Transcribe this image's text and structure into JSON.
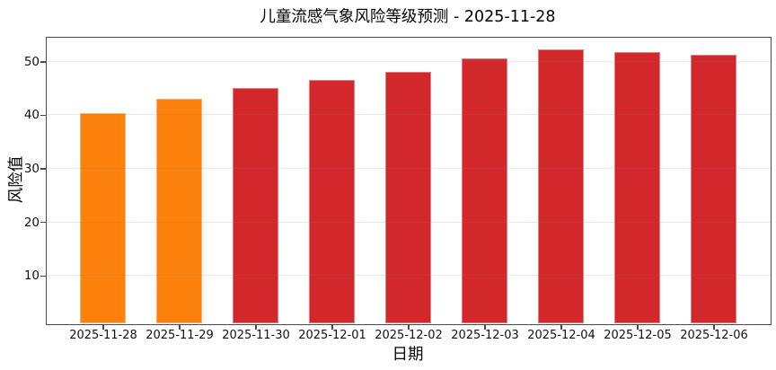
{
  "chart_data": {
    "type": "bar",
    "title": "儿童流感气象风险等级预测 - 2025-11-28",
    "xlabel": "日期",
    "ylabel": "风险值",
    "categories": [
      "2025-11-28",
      "2025-11-29",
      "2025-11-30",
      "2025-12-01",
      "2025-12-02",
      "2025-12-03",
      "2025-12-04",
      "2025-12-05",
      "2025-12-06"
    ],
    "values": [
      40.4,
      43.0,
      45.1,
      46.6,
      48.0,
      50.5,
      52.2,
      51.8,
      51.3
    ],
    "bar_colors": [
      "orange",
      "orange",
      "red",
      "red",
      "red",
      "red",
      "red",
      "red",
      "red"
    ],
    "palette": {
      "orange": "#fc810d",
      "red": "#d2282b",
      "axis": "#4a4a4a",
      "grid": "#e9e9e9"
    },
    "yticks": [
      "10",
      "20",
      "30",
      "40",
      "50"
    ],
    "ylim": [
      1,
      54.5
    ],
    "grid": "horizontal, drawn over bars",
    "legend_position": "none"
  }
}
